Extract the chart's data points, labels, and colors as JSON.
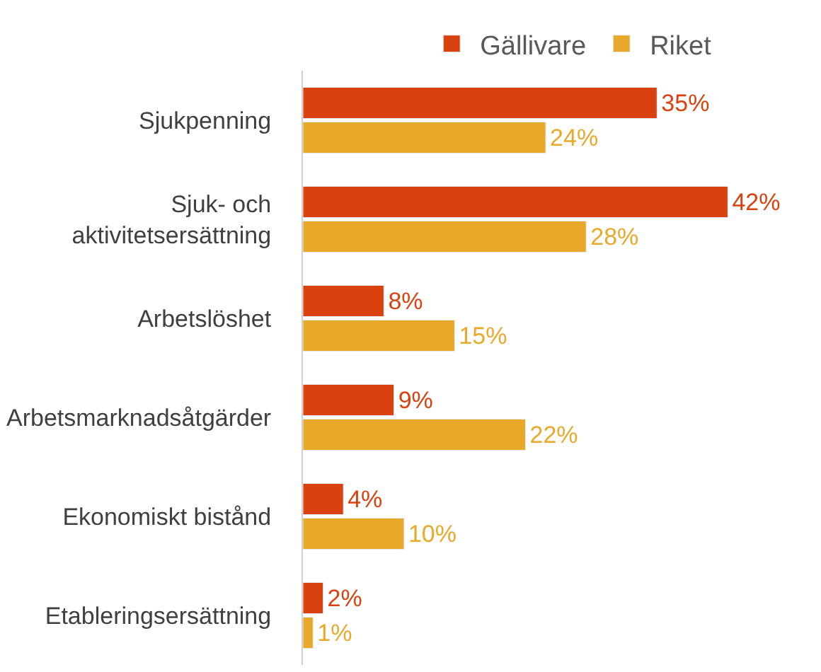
{
  "chart_data": {
    "type": "bar",
    "orientation": "horizontal",
    "categories": [
      "Sjukpenning",
      "Sjuk- och\naktivitetsersättning",
      "Arbetslöshet",
      "Arbetsmarknadsåtgärder",
      "Ekonomiskt bistånd",
      "Etableringsersättning"
    ],
    "series": [
      {
        "name": "Gällivare",
        "color": "#d9410e",
        "values": [
          35,
          42,
          8,
          9,
          4,
          2
        ],
        "value_labels": [
          "35%",
          "42%",
          "8%",
          "9%",
          "4%",
          "2%"
        ]
      },
      {
        "name": "Riket",
        "color": "#e8a92a",
        "values": [
          24,
          28,
          15,
          22,
          10,
          1
        ],
        "value_labels": [
          "24%",
          "28%",
          "15%",
          "22%",
          "10%",
          "1%"
        ]
      }
    ],
    "legend": "top"
  }
}
